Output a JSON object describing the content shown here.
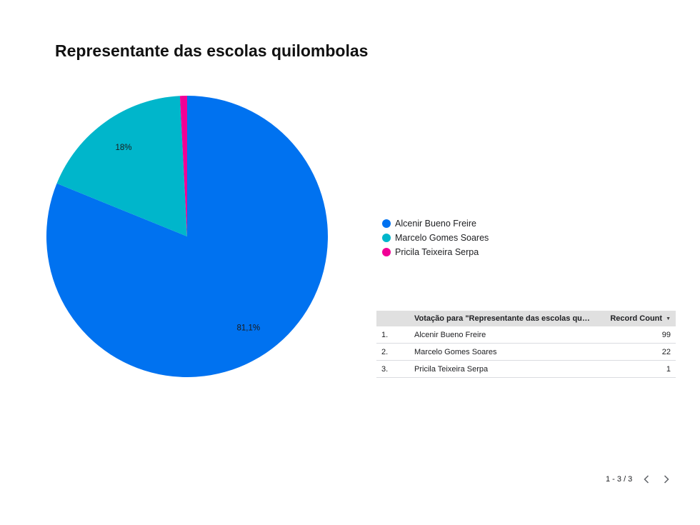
{
  "title": "Representante das escolas quilombolas",
  "chart_data": {
    "type": "pie",
    "title": "Representante das escolas quilombolas",
    "categories": [
      "Alcenir Bueno Freire",
      "Marcelo Gomes Soares",
      "Pricila Teixeira Serpa"
    ],
    "values": [
      99,
      22,
      1
    ],
    "slice_labels": [
      "81,1%",
      "18%",
      ""
    ],
    "colors": [
      "#0072f0",
      "#00b6cb",
      "#f10096"
    ],
    "legend_position": "right"
  },
  "legend": {
    "items": [
      {
        "label": "Alcenir Bueno Freire",
        "color": "#0072f0"
      },
      {
        "label": "Marcelo Gomes Soares",
        "color": "#00b6cb"
      },
      {
        "label": "Pricila Teixeira Serpa",
        "color": "#f10096"
      }
    ]
  },
  "table": {
    "headers": {
      "dimension": "Votação para \"Representante das escolas quilombolas\"",
      "metric": "Record Count"
    },
    "rows": [
      {
        "index": "1.",
        "name": "Alcenir Bueno Freire",
        "value": "99"
      },
      {
        "index": "2.",
        "name": "Marcelo Gomes Soares",
        "value": "22"
      },
      {
        "index": "3.",
        "name": "Pricila Teixeira Serpa",
        "value": "1"
      }
    ]
  },
  "pagination": {
    "range": "1 - 3 / 3"
  },
  "icons": {
    "sort": "sort-down-icon",
    "prev": "chevron-left-icon",
    "next": "chevron-right-icon"
  }
}
